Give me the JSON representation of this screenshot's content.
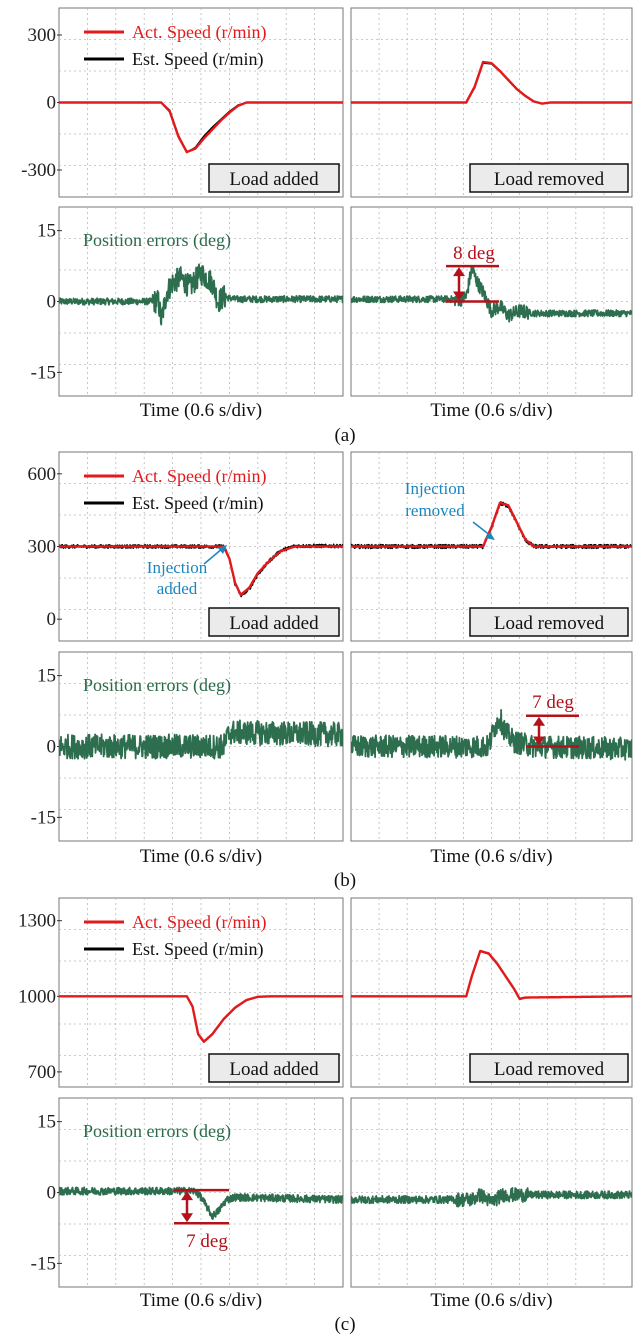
{
  "colors": {
    "act_speed": "#e31a1c",
    "est_speed": "#000000",
    "position_error": "#2d6e4f",
    "annotation": "#b3121b",
    "injection": "#1a86c0",
    "status_box": "#ebebeb"
  },
  "chart_data": [
    {
      "type": "line",
      "group": "(a)",
      "panel": "speed-load-added",
      "ytick_labels": [
        "300",
        "0",
        "-300"
      ],
      "ylim": [
        -420,
        420
      ],
      "xlim": [
        0,
        10
      ],
      "grid": true,
      "legend": [
        "Act. Speed (r/min)",
        "Est. Speed (r/min)"
      ],
      "legend_placement": "top",
      "status_label": "Load added",
      "series": [
        {
          "name": "Act. Speed (r/min)",
          "x": [
            0,
            3.6,
            3.9,
            4.2,
            4.5,
            4.8,
            5.1,
            5.4,
            5.7,
            6.0,
            6.3,
            6.6,
            10
          ],
          "y": [
            0,
            0,
            -40,
            -150,
            -220,
            -205,
            -160,
            -120,
            -80,
            -45,
            -15,
            0,
            0
          ]
        },
        {
          "name": "Est. Speed (r/min)",
          "x": [
            0,
            3.6,
            3.9,
            4.2,
            4.5,
            4.8,
            5.1,
            5.4,
            5.7,
            6.0,
            6.3,
            6.6,
            10
          ],
          "y": [
            0,
            0,
            -35,
            -145,
            -222,
            -200,
            -150,
            -110,
            -75,
            -40,
            -12,
            0,
            0
          ]
        }
      ]
    },
    {
      "type": "line",
      "group": "(a)",
      "panel": "speed-load-removed",
      "ylim": [
        -420,
        420
      ],
      "xlim": [
        0,
        10
      ],
      "grid": true,
      "status_label": "Load removed",
      "series": [
        {
          "name": "Act. Speed (r/min)",
          "x": [
            0,
            4.1,
            4.4,
            4.7,
            5.0,
            5.3,
            5.6,
            5.9,
            6.2,
            6.5,
            6.8,
            7.1,
            10
          ],
          "y": [
            0,
            0,
            70,
            180,
            175,
            140,
            100,
            60,
            30,
            5,
            -5,
            0,
            0
          ]
        },
        {
          "name": "Est. Speed (r/min)",
          "x": [
            0,
            4.1,
            4.4,
            4.7,
            5.0,
            5.3,
            5.6,
            5.9,
            6.2,
            6.5,
            6.8,
            7.1,
            10
          ],
          "y": [
            0,
            0,
            65,
            175,
            172,
            138,
            98,
            58,
            28,
            4,
            -5,
            0,
            0
          ]
        }
      ]
    },
    {
      "type": "line",
      "group": "(a)",
      "panel": "error-load-added",
      "ytick_labels": [
        "15",
        "0",
        "-15"
      ],
      "ylim": [
        -20,
        20
      ],
      "xlim": [
        0,
        10
      ],
      "grid": true,
      "xlabel": "Time (0.6 s/div)",
      "title": "Position errors (deg)",
      "series": [
        {
          "name": "Position errors (deg)",
          "x": [
            0,
            3.5,
            3.6,
            3.8,
            4.0,
            4.3,
            4.6,
            5.0,
            5.4,
            5.6,
            5.8,
            6.2,
            10
          ],
          "y": [
            0,
            0,
            -4,
            2,
            4,
            5,
            3,
            6,
            4,
            0,
            1,
            0.5,
            0.5
          ],
          "noise": 0.7,
          "noise_peak": 2.5
        }
      ]
    },
    {
      "type": "line",
      "group": "(a)",
      "panel": "error-load-removed",
      "ylim": [
        -20,
        20
      ],
      "xlim": [
        0,
        10
      ],
      "grid": true,
      "xlabel": "Time (0.6 s/div)",
      "annotation": "8 deg",
      "series": [
        {
          "name": "Position errors (deg)",
          "x": [
            0,
            3.9,
            4.1,
            4.3,
            4.5,
            4.7,
            5.0,
            5.3,
            5.6,
            6.0,
            6.5,
            10
          ],
          "y": [
            0.5,
            0.5,
            1,
            7,
            4,
            2,
            -2,
            -1,
            -3,
            -2,
            -2.5,
            -2.5
          ],
          "noise": 0.7,
          "noise_peak": 1.5
        }
      ]
    },
    {
      "type": "line",
      "group": "(b)",
      "panel": "speed-load-added",
      "ytick_labels": [
        "600",
        "300",
        "0"
      ],
      "ylim": [
        -90,
        690
      ],
      "xlim": [
        0,
        10
      ],
      "grid": true,
      "legend": [
        "Act. Speed (r/min)",
        "Est. Speed (r/min)"
      ],
      "legend_placement": "top",
      "status_label": "Load added",
      "annotation": "Injection added",
      "series": [
        {
          "name": "Act. Speed (r/min)",
          "x": [
            0,
            5.8,
            6.0,
            6.2,
            6.4,
            6.7,
            7.0,
            7.4,
            7.8,
            8.3,
            10
          ],
          "y": [
            300,
            300,
            250,
            150,
            100,
            130,
            190,
            240,
            280,
            300,
            300
          ]
        },
        {
          "name": "Est. Speed (r/min)",
          "x": [
            0,
            5.8,
            6.0,
            6.2,
            6.4,
            6.7,
            7.0,
            7.4,
            7.8,
            8.3,
            10
          ],
          "y": [
            300,
            300,
            250,
            145,
            98,
            125,
            185,
            240,
            282,
            302,
            302
          ],
          "noise": 7
        }
      ]
    },
    {
      "type": "line",
      "group": "(b)",
      "panel": "speed-load-removed",
      "ylim": [
        -90,
        690
      ],
      "xlim": [
        0,
        10
      ],
      "grid": true,
      "status_label": "Load removed",
      "annotation": "Injection removed",
      "series": [
        {
          "name": "Act. Speed (r/min)",
          "x": [
            0,
            4.7,
            5.0,
            5.3,
            5.6,
            5.9,
            6.2,
            6.5,
            10
          ],
          "y": [
            300,
            300,
            380,
            480,
            470,
            400,
            330,
            300,
            300
          ]
        },
        {
          "name": "Est. Speed (r/min)",
          "x": [
            0,
            4.7,
            5.0,
            5.3,
            5.6,
            5.9,
            6.2,
            6.5,
            10
          ],
          "y": [
            300,
            300,
            375,
            478,
            468,
            398,
            328,
            300,
            300
          ],
          "noise": 8
        }
      ]
    },
    {
      "type": "line",
      "group": "(b)",
      "panel": "error-load-added",
      "ytick_labels": [
        "15",
        "0",
        "-15"
      ],
      "ylim": [
        -20,
        20
      ],
      "xlim": [
        0,
        10
      ],
      "grid": true,
      "xlabel": "Time (0.6 s/div)",
      "title": "Position errors (deg)",
      "series": [
        {
          "name": "Position errors (deg)",
          "x": [
            0,
            5.8,
            6.0,
            10
          ],
          "y": [
            0,
            0,
            3,
            2.5
          ],
          "noise": 2.6
        }
      ]
    },
    {
      "type": "line",
      "group": "(b)",
      "panel": "error-load-removed",
      "ylim": [
        -20,
        20
      ],
      "xlim": [
        0,
        10
      ],
      "grid": true,
      "xlabel": "Time (0.6 s/div)",
      "annotation": "7 deg",
      "series": [
        {
          "name": "Position errors (deg)",
          "x": [
            0,
            4.9,
            5.1,
            5.3,
            5.5,
            5.8,
            6.5,
            10
          ],
          "y": [
            0,
            0,
            4,
            6,
            3,
            1,
            0,
            -0.5
          ],
          "noise": 2.4
        }
      ]
    },
    {
      "type": "line",
      "group": "(c)",
      "panel": "speed-load-added",
      "ytick_labels": [
        "1300",
        "1000",
        "700"
      ],
      "ylim": [
        640,
        1390
      ],
      "xlim": [
        0,
        10
      ],
      "grid": true,
      "legend": [
        "Act. Speed (r/min)",
        "Est. Speed (r/min)"
      ],
      "legend_placement": "top",
      "status_label": "Load added",
      "series": [
        {
          "name": "Act. Speed (r/min)",
          "x": [
            0,
            4.5,
            4.7,
            4.9,
            5.1,
            5.4,
            5.8,
            6.2,
            6.6,
            7.0,
            7.5,
            10
          ],
          "y": [
            1000,
            1000,
            960,
            850,
            820,
            850,
            910,
            955,
            985,
            998,
            1000,
            1000
          ]
        },
        {
          "name": "Est. Speed (r/min)",
          "x": [
            0,
            4.5,
            4.7,
            4.9,
            5.1,
            5.4,
            5.8,
            6.2,
            6.6,
            7.0,
            7.5,
            10
          ],
          "y": [
            1000,
            1000,
            958,
            848,
            818,
            848,
            908,
            953,
            984,
            998,
            1000,
            1000
          ]
        }
      ]
    },
    {
      "type": "line",
      "group": "(c)",
      "panel": "speed-load-removed",
      "ylim": [
        640,
        1390
      ],
      "xlim": [
        0,
        10
      ],
      "grid": true,
      "status_label": "Load removed",
      "series": [
        {
          "name": "Act. Speed (r/min)",
          "x": [
            0,
            4.1,
            4.3,
            4.6,
            4.9,
            5.2,
            5.5,
            5.8,
            6.0,
            6.2,
            10
          ],
          "y": [
            1000,
            1000,
            1080,
            1180,
            1170,
            1130,
            1080,
            1030,
            990,
            995,
            1000
          ]
        },
        {
          "name": "Est. Speed (r/min)",
          "x": [
            0,
            4.1,
            4.3,
            4.6,
            4.9,
            5.2,
            5.5,
            5.8,
            6.0,
            6.2,
            10
          ],
          "y": [
            1000,
            1000,
            1078,
            1178,
            1168,
            1128,
            1078,
            1028,
            988,
            994,
            1000
          ]
        }
      ]
    },
    {
      "type": "line",
      "group": "(c)",
      "panel": "error-load-added",
      "ytick_labels": [
        "15",
        "0",
        "-15"
      ],
      "ylim": [
        -20,
        20
      ],
      "xlim": [
        0,
        10
      ],
      "grid": true,
      "xlabel": "Time (0.6 s/div)",
      "title": "Position errors (deg)",
      "annotation": "7 deg",
      "series": [
        {
          "name": "Position errors (deg)",
          "x": [
            0,
            4.8,
            5.0,
            5.2,
            5.4,
            5.6,
            5.9,
            6.2,
            10
          ],
          "y": [
            0.3,
            0.3,
            -1,
            -3,
            -5,
            -4,
            -1.5,
            -1,
            -1.5
          ],
          "noise": 0.8
        }
      ]
    },
    {
      "type": "line",
      "group": "(c)",
      "panel": "error-load-removed",
      "ylim": [
        -20,
        20
      ],
      "xlim": [
        0,
        10
      ],
      "grid": true,
      "xlabel": "Time (0.6 s/div)",
      "series": [
        {
          "name": "Position errors (deg)",
          "x": [
            0,
            4.3,
            4.6,
            5.0,
            5.4,
            10
          ],
          "y": [
            -1.5,
            -1.5,
            -0.5,
            -2,
            -0.5,
            -0.5
          ],
          "noise": 0.8,
          "noise_peak": 1.5
        }
      ]
    }
  ],
  "group_labels": [
    "(a)",
    "(b)",
    "(c)"
  ]
}
